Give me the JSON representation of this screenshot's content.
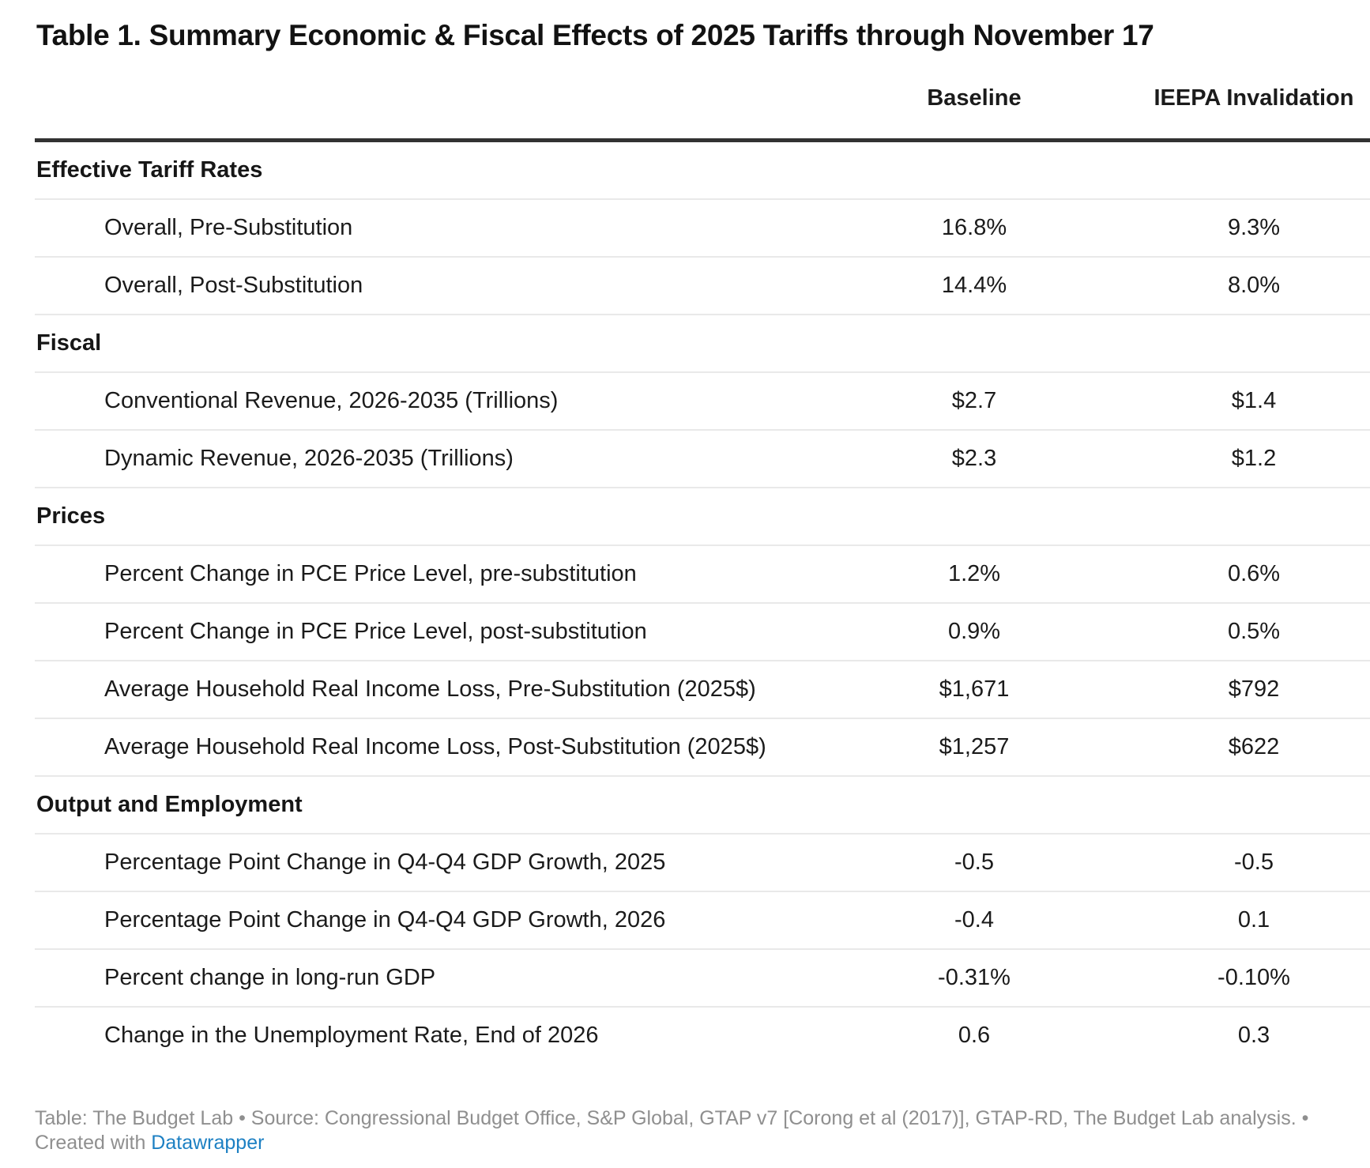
{
  "title": "Table 1. Summary Economic & Fiscal Effects of 2025 Tariffs through November 17",
  "columns": [
    "",
    "Baseline",
    "IEEPA Invalidation"
  ],
  "colors": {
    "text": "#1b1b1b",
    "header_rule": "#323232",
    "row_divider": "#e9e9e9",
    "footer_gray": "#8f8f8f",
    "link_blue": "#1d80c3"
  },
  "chart_data": {
    "type": "table",
    "title": "Table 1. Summary Economic & Fiscal Effects of 2025 Tariffs through November 17",
    "columns": [
      "",
      "Baseline",
      "IEEPA Invalidation"
    ],
    "sections": [
      {
        "label": "Effective Tariff Rates",
        "rows": [
          [
            "Overall, Pre-Substitution",
            "16.8%",
            "9.3%"
          ],
          [
            "Overall, Post-Substitution",
            "14.4%",
            "8.0%"
          ]
        ]
      },
      {
        "label": "Fiscal",
        "rows": [
          [
            "Conventional Revenue, 2026-2035 (Trillions)",
            "$2.7",
            "$1.4"
          ],
          [
            "Dynamic Revenue, 2026-2035 (Trillions)",
            "$2.3",
            "$1.2"
          ]
        ]
      },
      {
        "label": "Prices",
        "rows": [
          [
            "Percent Change in PCE Price Level, pre-substitution",
            "1.2%",
            "0.6%"
          ],
          [
            "Percent Change in PCE Price Level, post-substitution",
            "0.9%",
            "0.5%"
          ],
          [
            "Average Household Real Income Loss, Pre-Substitution (2025$)",
            "$1,671",
            "$792"
          ],
          [
            "Average Household Real Income Loss, Post-Substitution (2025$)",
            "$1,257",
            "$622"
          ]
        ]
      },
      {
        "label": "Output and Employment",
        "rows": [
          [
            "Percentage Point Change in Q4-Q4 GDP Growth, 2025",
            "-0.5",
            "-0.5"
          ],
          [
            "Percentage Point Change in Q4-Q4 GDP Growth, 2026",
            "-0.4",
            "0.1"
          ],
          [
            "Percent change in long-run GDP",
            "-0.31%",
            "-0.10%"
          ],
          [
            "Change in the Unemployment Rate, End of 2026",
            "0.6",
            "0.3"
          ]
        ]
      }
    ]
  },
  "footer": {
    "text": "Table: The Budget Lab • Source: Congressional Budget Office, S&P Global, GTAP v7 [Corong et al (2017)], GTAP-RD, The Budget Lab analysis. • Created with ",
    "link_label": "Datawrapper"
  }
}
